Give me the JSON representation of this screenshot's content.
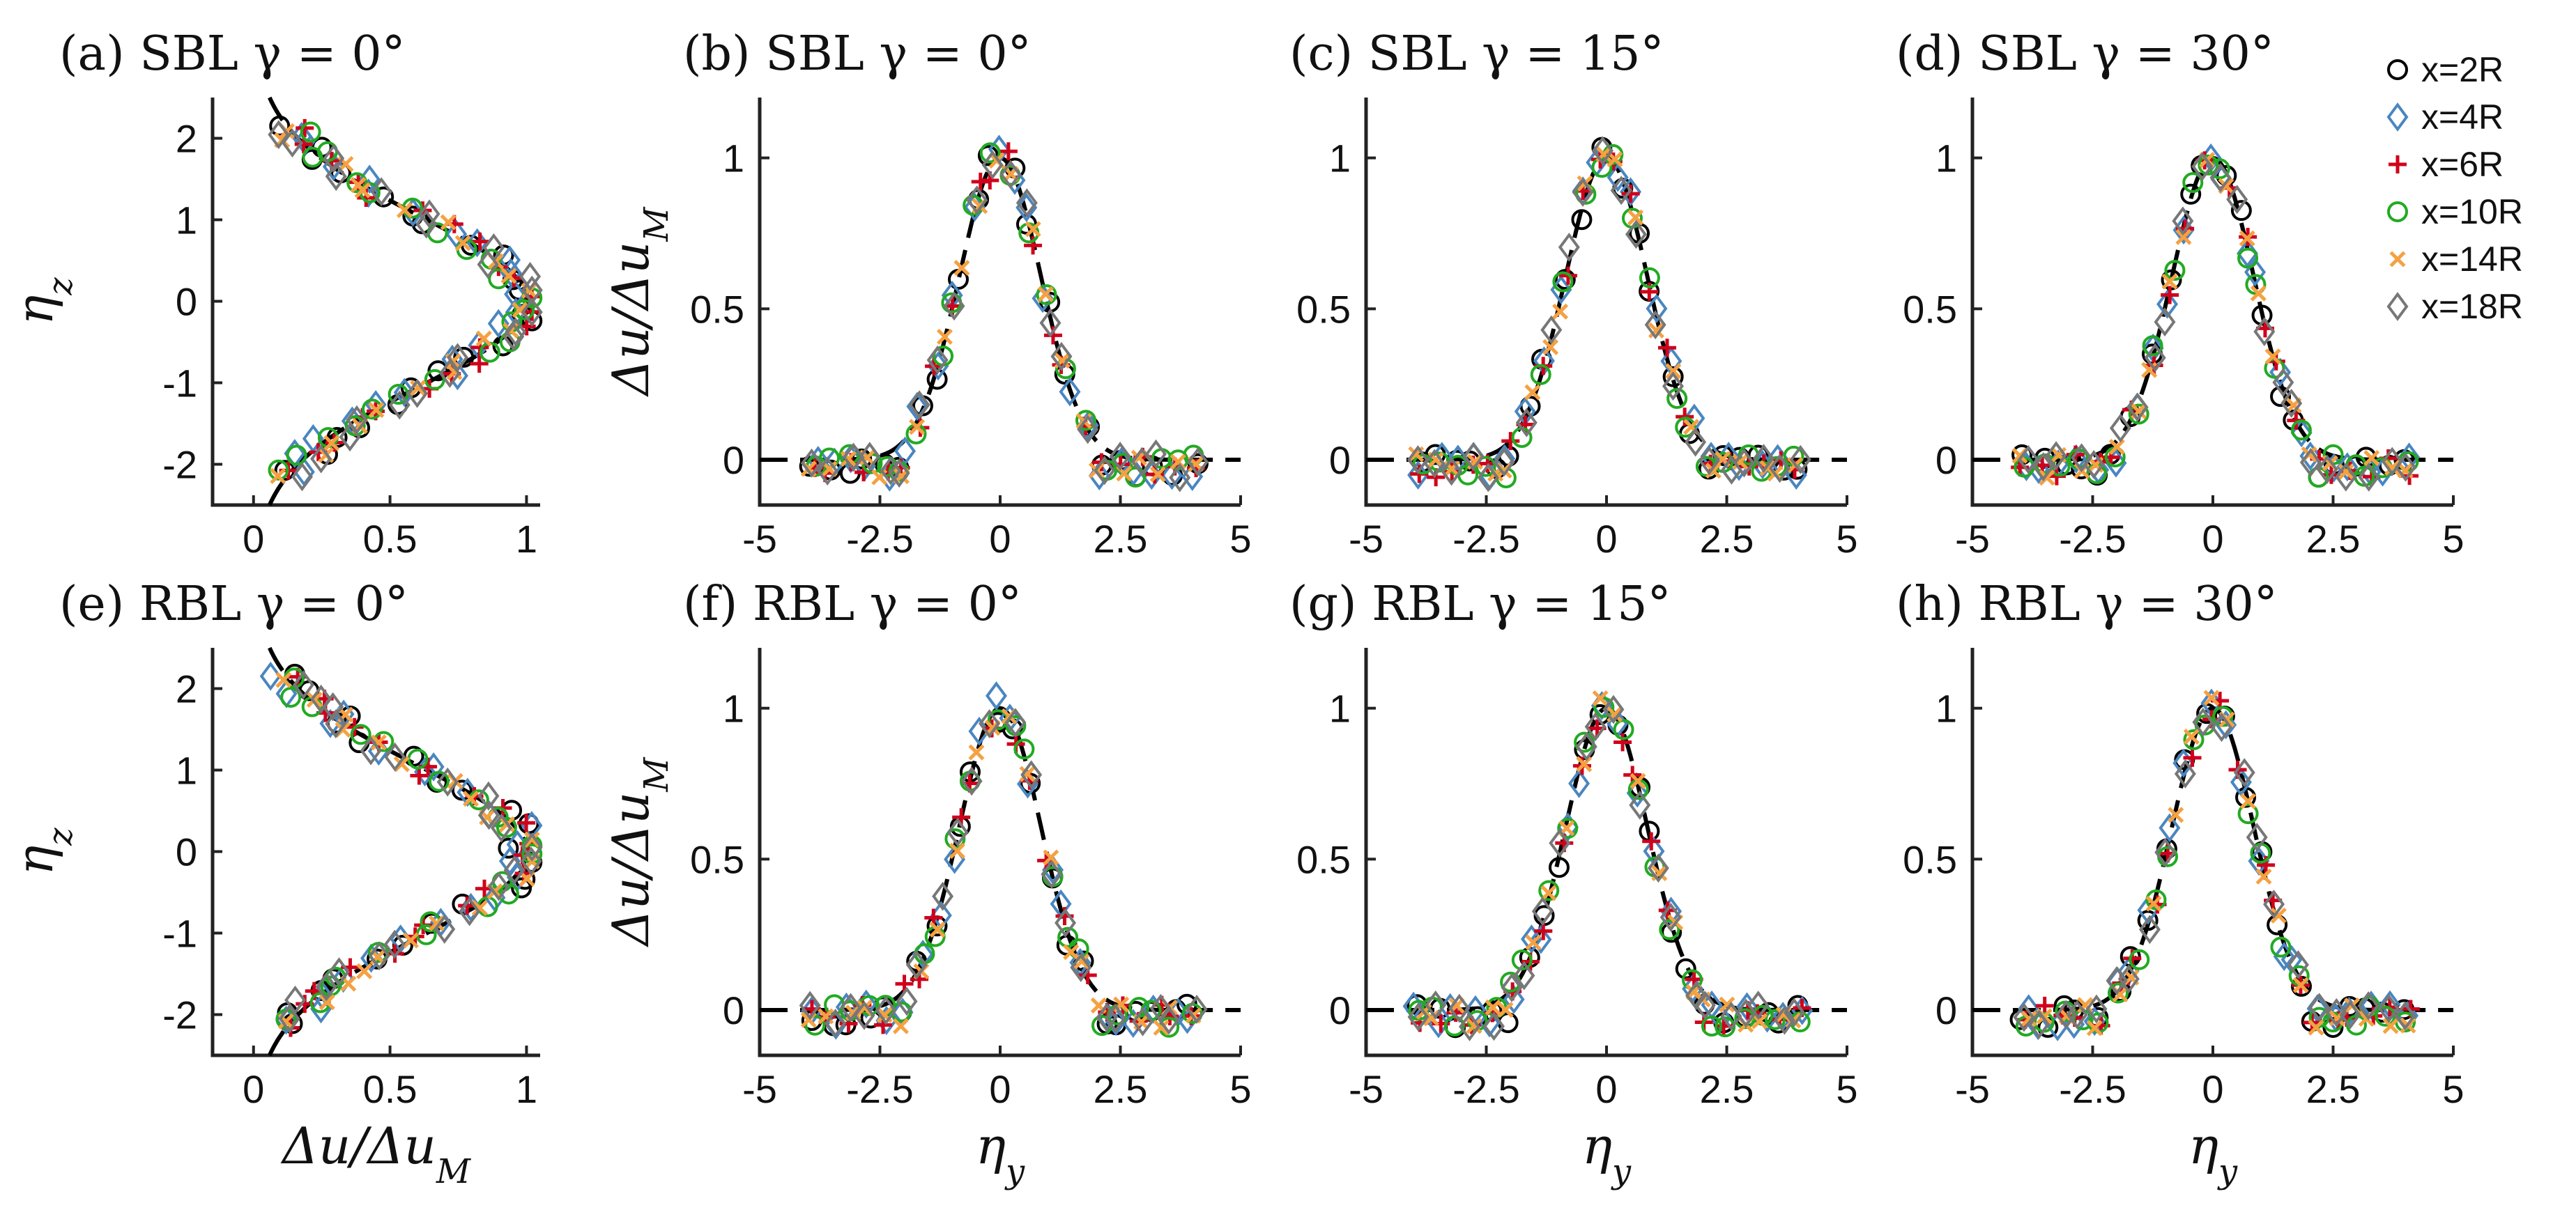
{
  "chart_data": {
    "type": "scatter",
    "legend": {
      "placement": "top-right",
      "entries": [
        {
          "label": "x=2R",
          "marker": "circle",
          "color": "#000000"
        },
        {
          "label": "x=4R",
          "marker": "diamond",
          "color": "#4a86c0"
        },
        {
          "label": "x=6R",
          "marker": "plus",
          "color": "#d0021b"
        },
        {
          "label": "x=10R",
          "marker": "circle",
          "color": "#22aa22"
        },
        {
          "label": "x=14R",
          "marker": "cross",
          "color": "#f5a142"
        },
        {
          "label": "x=18R",
          "marker": "diamond",
          "color": "#777777"
        }
      ]
    },
    "panels": [
      {
        "id": "a",
        "title": "(a) SBL γ = 0°",
        "kind": "vertical",
        "ylabel": "η_z",
        "xlabel": "",
        "xlim": [
          -0.15,
          1.05
        ],
        "ylim": [
          -2.5,
          2.5
        ],
        "xticks": [
          "0",
          "0.5",
          "1"
        ],
        "yticks": [
          "-2",
          "-1",
          "0",
          "1",
          "2"
        ]
      },
      {
        "id": "b",
        "title": "(b) SBL γ = 0°",
        "kind": "horizontal",
        "ylabel": "Δu/Δu_M",
        "xlabel": "",
        "xlim": [
          -5,
          5
        ],
        "ylim": [
          -0.15,
          1.2
        ],
        "xticks": [
          "-5",
          "-2.5",
          "0",
          "2.5",
          "5"
        ],
        "yticks": [
          "0",
          "0.5",
          "1"
        ]
      },
      {
        "id": "c",
        "title": "(c) SBL γ = 15°",
        "kind": "horizontal",
        "ylabel": "",
        "xlabel": "",
        "xlim": [
          -5,
          5
        ],
        "ylim": [
          -0.15,
          1.2
        ],
        "xticks": [
          "-5",
          "-2.5",
          "0",
          "2.5",
          "5"
        ],
        "yticks": [
          "0",
          "0.5",
          "1"
        ]
      },
      {
        "id": "d",
        "title": "(d) SBL γ = 30°",
        "kind": "horizontal",
        "ylabel": "",
        "xlabel": "",
        "xlim": [
          -5,
          5
        ],
        "ylim": [
          -0.15,
          1.2
        ],
        "xticks": [
          "-5",
          "-2.5",
          "0",
          "2.5",
          "5"
        ],
        "yticks": [
          "0",
          "0.5",
          "1"
        ]
      },
      {
        "id": "e",
        "title": "(e) RBL γ = 0°",
        "kind": "vertical",
        "ylabel": "η_z",
        "xlabel": "Δu/Δu_M",
        "xlim": [
          -0.15,
          1.05
        ],
        "ylim": [
          -2.5,
          2.5
        ],
        "xticks": [
          "0",
          "0.5",
          "1"
        ],
        "yticks": [
          "-2",
          "-1",
          "0",
          "1",
          "2"
        ]
      },
      {
        "id": "f",
        "title": "(f) RBL γ = 0°",
        "kind": "horizontal",
        "ylabel": "Δu/Δu_M",
        "xlabel": "η_y",
        "xlim": [
          -5,
          5
        ],
        "ylim": [
          -0.15,
          1.2
        ],
        "xticks": [
          "-5",
          "-2.5",
          "0",
          "2.5",
          "5"
        ],
        "yticks": [
          "0",
          "0.5",
          "1"
        ]
      },
      {
        "id": "g",
        "title": "(g) RBL γ = 15°",
        "kind": "horizontal",
        "ylabel": "",
        "xlabel": "η_y",
        "xlim": [
          -5,
          5
        ],
        "ylim": [
          -0.15,
          1.2
        ],
        "xticks": [
          "-5",
          "-2.5",
          "0",
          "2.5",
          "5"
        ],
        "yticks": [
          "0",
          "0.5",
          "1"
        ]
      },
      {
        "id": "h",
        "title": "(h) RBL γ = 30°",
        "kind": "horizontal",
        "ylabel": "",
        "xlabel": "η_y",
        "xlim": [
          -5,
          5
        ],
        "ylim": [
          -0.15,
          1.2
        ],
        "xticks": [
          "-5",
          "-2.5",
          "0",
          "2.5",
          "5"
        ],
        "yticks": [
          "0",
          "0.5",
          "1"
        ]
      }
    ],
    "reference_curve": {
      "style": "dashed",
      "color": "#000000",
      "function": "gaussian",
      "sigma": 0.85,
      "shift": 0
    }
  }
}
